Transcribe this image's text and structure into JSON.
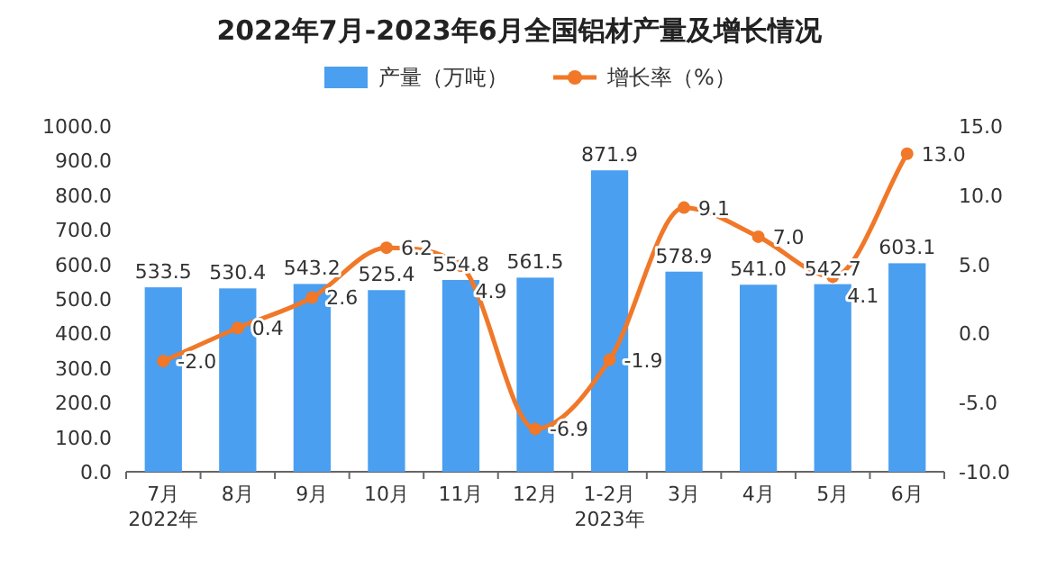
{
  "chart_data": {
    "type": "bar",
    "title": "2022年7月-2023年6月全国铝材产量及增长情况",
    "categories": [
      "7月",
      "8月",
      "9月",
      "10月",
      "11月",
      "12月",
      "1-2月",
      "3月",
      "4月",
      "5月",
      "6月"
    ],
    "series": [
      {
        "name": "产量（万吨）",
        "color": "#4a9ff0",
        "values": [
          533.5,
          530.4,
          543.2,
          525.4,
          554.8,
          561.5,
          871.9,
          578.9,
          541.0,
          542.7,
          603.1
        ],
        "value_labels": [
          "533.5",
          "530.4",
          "543.2",
          "525.4",
          "554.8",
          "561.5",
          "871.9",
          "578.9",
          "541.0",
          "542.7",
          "603.1"
        ]
      },
      {
        "name": "增长率（%）",
        "type": "line",
        "axis": "y2",
        "color": "#f07828",
        "marker": "circle",
        "values": [
          -2.0,
          0.4,
          2.6,
          6.2,
          4.9,
          -6.9,
          -1.9,
          9.1,
          7.0,
          4.1,
          13.0
        ],
        "value_labels": [
          "-2.0",
          "0.4",
          "2.6",
          "6.2",
          "4.9",
          "-6.9",
          "-1.9",
          "9.1",
          "7.0",
          "4.1",
          "13.0"
        ]
      }
    ],
    "ylim": [
      0,
      1000
    ],
    "yticks": [
      {
        "value": 0,
        "label": "0.0"
      },
      {
        "value": 100,
        "label": "100.0"
      },
      {
        "value": 200,
        "label": "200.0"
      },
      {
        "value": 300,
        "label": "300.0"
      },
      {
        "value": 400,
        "label": "400.0"
      },
      {
        "value": 500,
        "label": "500.0"
      },
      {
        "value": 600,
        "label": "600.0"
      },
      {
        "value": 700,
        "label": "700.0"
      },
      {
        "value": 800,
        "label": "800.0"
      },
      {
        "value": 900,
        "label": "900.0"
      },
      {
        "value": 1000,
        "label": "1000.0"
      }
    ],
    "y2lim": [
      -10,
      15
    ],
    "y2ticks": [
      {
        "value": -10,
        "label": "-10.0"
      },
      {
        "value": -5,
        "label": "-5.0"
      },
      {
        "value": 0,
        "label": "0.0"
      },
      {
        "value": 5,
        "label": "5.0"
      },
      {
        "value": 10,
        "label": "10.0"
      },
      {
        "value": 15,
        "label": "15.0"
      }
    ],
    "legend": "top",
    "annotations": [
      "2022年",
      "2023年"
    ]
  }
}
